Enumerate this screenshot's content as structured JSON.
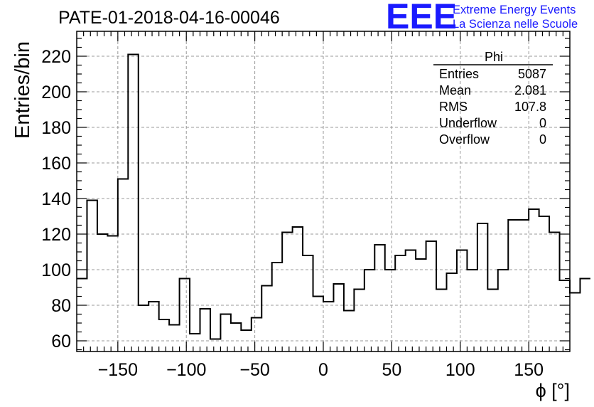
{
  "chart_data": {
    "type": "histogram",
    "title": "PATE-01-2018-04-16-00046",
    "xlabel": "ϕ [°]",
    "ylabel": "Entries/bin",
    "xlim": [
      -180,
      180
    ],
    "ylim": [
      54,
      234
    ],
    "grid": true,
    "bin_width": 7.5,
    "x_ticks": [
      -150,
      -100,
      -50,
      0,
      50,
      100,
      150
    ],
    "y_ticks": [
      60,
      80,
      100,
      120,
      140,
      160,
      180,
      200,
      220
    ],
    "series": [
      {
        "values": [
          95,
          139,
          120,
          119,
          151,
          221,
          80,
          82,
          72,
          69,
          95,
          64,
          78,
          61,
          75,
          70,
          66,
          73,
          91,
          104,
          121,
          124,
          108,
          85,
          82,
          92,
          77,
          89,
          100,
          114,
          100,
          108,
          111,
          106,
          116,
          89,
          98,
          111,
          100,
          126,
          89,
          100,
          128,
          128,
          134,
          130,
          121,
          94,
          87,
          95
        ]
      }
    ],
    "stats_box": {
      "title": "Phi",
      "rows": [
        {
          "label": "Entries",
          "value": "5087"
        },
        {
          "label": "Mean",
          "value": "2.081"
        },
        {
          "label": "RMS",
          "value": "107.8"
        },
        {
          "label": "Underflow",
          "value": "0"
        },
        {
          "label": "Overflow",
          "value": "0"
        }
      ]
    }
  },
  "logo": {
    "text": "EEE",
    "line1": "Extreme Energy Events",
    "line2": "La Scienza nelle Scuole",
    "color": "#1a1aff"
  },
  "colors": {
    "line": "#000000",
    "grid": "#999999",
    "axis": "#000000"
  }
}
